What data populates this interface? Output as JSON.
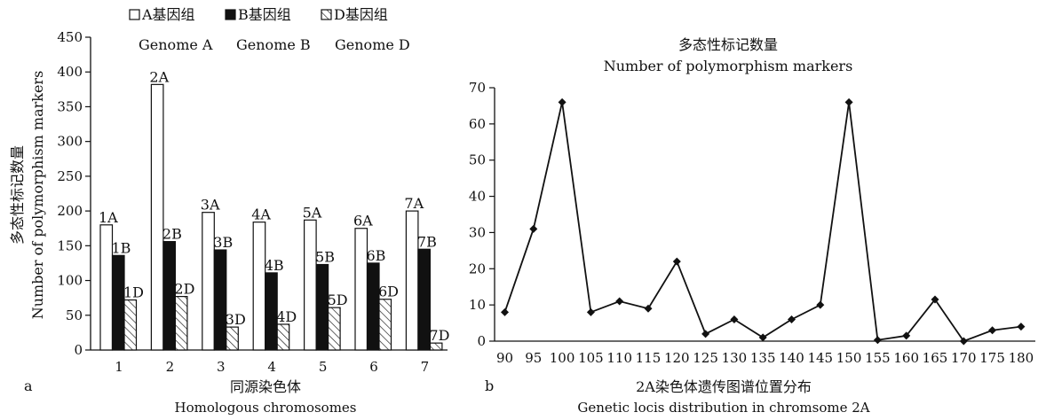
{
  "chart_data": [
    {
      "type": "bar",
      "panel_label": "a",
      "categories": [
        "1",
        "2",
        "3",
        "4",
        "5",
        "6",
        "7"
      ],
      "series": [
        {
          "name": "A基因组",
          "name_en": "Genome A",
          "values": [
            180,
            382,
            198,
            184,
            187,
            175,
            200
          ],
          "bar_labels": [
            "1A",
            "2A",
            "3A",
            "4A",
            "5A",
            "6A",
            "7A"
          ]
        },
        {
          "name": "B基因组",
          "name_en": "Genome B",
          "values": [
            136,
            156,
            144,
            111,
            123,
            125,
            145
          ],
          "bar_labels": [
            "1B",
            "2B",
            "3B",
            "4B",
            "5B",
            "6B",
            "7B"
          ]
        },
        {
          "name": "D基因组",
          "name_en": "Genome D",
          "values": [
            72,
            77,
            33,
            37,
            61,
            73,
            10
          ],
          "bar_labels": [
            "1D",
            "2D",
            "3D",
            "4D",
            "5D",
            "6D",
            "7D"
          ]
        }
      ],
      "ylim": [
        0,
        450
      ],
      "yticks": [
        "0",
        "50",
        "100",
        "150",
        "200",
        "250",
        "300",
        "350",
        "400",
        "450"
      ],
      "ylabel": "多态性标记数量",
      "ylabel_en": "Number of polymorphism markers",
      "xlabel": "同源染色体",
      "xlabel_en": "Homologous chromosomes",
      "legend_position": "top",
      "grid": false
    },
    {
      "type": "line",
      "panel_label": "b",
      "title": "多态性标记数量",
      "title_en": "Number of polymorphism markers",
      "x": [
        90,
        95,
        100,
        105,
        110,
        115,
        120,
        125,
        130,
        135,
        140,
        145,
        150,
        155,
        160,
        165,
        170,
        175,
        180
      ],
      "xticks": [
        "90",
        "95",
        "100",
        "105",
        "110",
        "115",
        "120",
        "125",
        "130",
        "135",
        "140",
        "145",
        "150",
        "155",
        "160",
        "165",
        "170",
        "175",
        "180"
      ],
      "y": [
        8,
        31,
        66,
        8,
        11,
        9,
        22,
        2,
        6,
        1,
        6,
        10,
        66,
        0.3,
        1.5,
        11.5,
        0,
        3,
        4
      ],
      "ylim": [
        0,
        70
      ],
      "yticks": [
        "0",
        "10",
        "20",
        "30",
        "40",
        "50",
        "60",
        "70"
      ],
      "xlabel": "2A染色体遗传图谱位置分布",
      "xlabel_en": "Genetic locis distribution in chromsome 2A",
      "marker": "diamond",
      "grid": false
    }
  ]
}
